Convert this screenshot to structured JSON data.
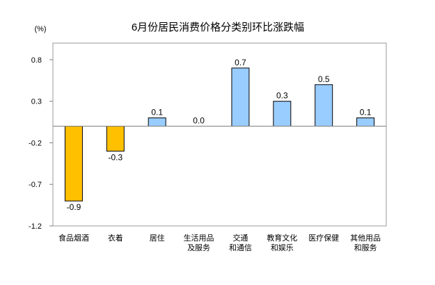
{
  "chart_data": {
    "type": "bar",
    "title": "6月份居民消费价格分类别环比涨跌幅",
    "ylabel": "(%)",
    "xlabel": "",
    "categories": [
      [
        "食品烟酒"
      ],
      [
        "衣着"
      ],
      [
        "居住"
      ],
      [
        "生活用品",
        "及服务"
      ],
      [
        "交通",
        "和通信"
      ],
      [
        "教育文化",
        "和娱乐"
      ],
      [
        "医疗保健"
      ],
      [
        "其他用品",
        "和服务"
      ]
    ],
    "values": [
      -0.9,
      -0.3,
      0.1,
      0.0,
      0.7,
      0.3,
      0.5,
      0.1
    ],
    "value_labels": [
      "-0.9",
      "-0.3",
      "0.1",
      "0.0",
      "0.7",
      "0.3",
      "0.5",
      "0.1"
    ],
    "ylim": [
      -1.2,
      1.0
    ],
    "yticks": [
      -1.2,
      -0.7,
      -0.2,
      0.3,
      0.8
    ],
    "ytick_labels": [
      "-1.2",
      "-0.7",
      "-0.2",
      "0.3",
      "0.8"
    ],
    "grid": false,
    "colors": {
      "positive": "#99CCFF",
      "negative": "#FFC000",
      "axis": "#808080"
    }
  }
}
